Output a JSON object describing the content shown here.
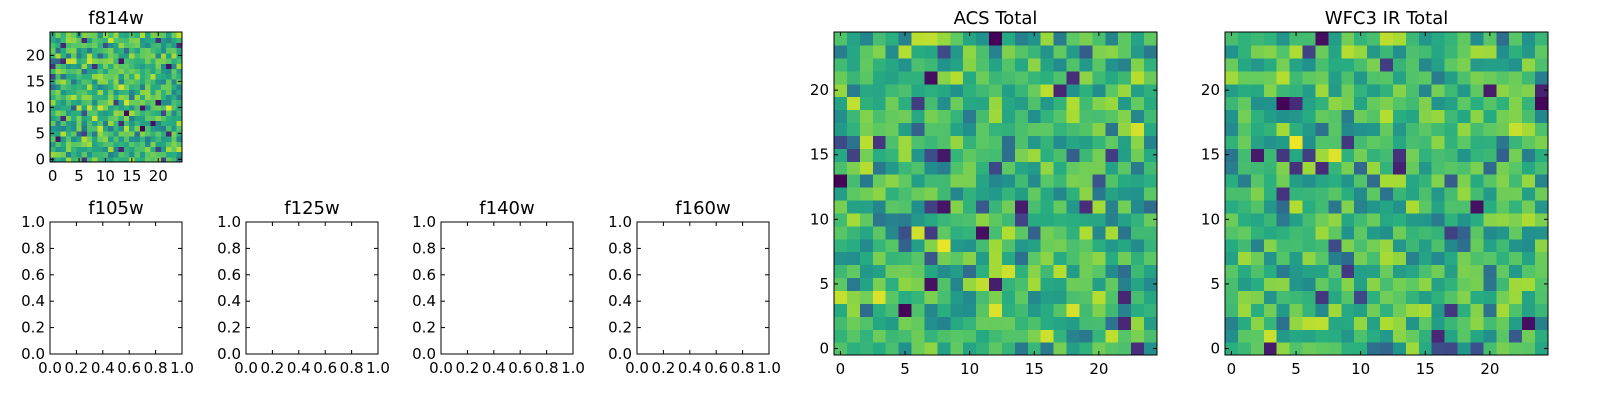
{
  "chart_data": [
    {
      "id": "f814w",
      "type": "heatmap",
      "title": "f814w",
      "colormap": "viridis",
      "grid": false,
      "x_range": [
        -0.5,
        24.5
      ],
      "y_range": [
        -0.5,
        24.5
      ],
      "x_ticks": [
        0,
        5,
        10,
        15,
        20
      ],
      "y_ticks": [
        0,
        5,
        10,
        15,
        20
      ],
      "x_tick_labels": [
        "0",
        "5",
        "10",
        "15",
        "20"
      ],
      "y_tick_labels": [
        "0",
        "5",
        "10",
        "15",
        "20"
      ],
      "grid_size": [
        25,
        25
      ],
      "seed": 814
    },
    {
      "id": "f105w",
      "type": "heatmap",
      "title": "f105w",
      "empty": true,
      "x_range": [
        0,
        1
      ],
      "y_range": [
        0,
        1
      ],
      "x_ticks": [
        0,
        0.2,
        0.4,
        0.6,
        0.8,
        1.0
      ],
      "y_ticks": [
        0,
        0.2,
        0.4,
        0.6,
        0.8,
        1.0
      ],
      "x_tick_labels": [
        "0.0",
        "0.2",
        "0.4",
        "0.6",
        "0.8",
        "1.0"
      ],
      "y_tick_labels": [
        "0.0",
        "0.2",
        "0.4",
        "0.6",
        "0.8",
        "1.0"
      ]
    },
    {
      "id": "f125w",
      "type": "heatmap",
      "title": "f125w",
      "empty": true,
      "x_range": [
        0,
        1
      ],
      "y_range": [
        0,
        1
      ],
      "x_ticks": [
        0,
        0.2,
        0.4,
        0.6,
        0.8,
        1.0
      ],
      "y_ticks": [
        0,
        0.2,
        0.4,
        0.6,
        0.8,
        1.0
      ],
      "x_tick_labels": [
        "0.0",
        "0.2",
        "0.4",
        "0.6",
        "0.8",
        "1.0"
      ],
      "y_tick_labels": [
        "0.0",
        "0.2",
        "0.4",
        "0.6",
        "0.8",
        "1.0"
      ]
    },
    {
      "id": "f140w",
      "type": "heatmap",
      "title": "f140w",
      "empty": true,
      "x_range": [
        0,
        1
      ],
      "y_range": [
        0,
        1
      ],
      "x_ticks": [
        0,
        0.2,
        0.4,
        0.6,
        0.8,
        1.0
      ],
      "y_ticks": [
        0,
        0.2,
        0.4,
        0.6,
        0.8,
        1.0
      ],
      "x_tick_labels": [
        "0.0",
        "0.2",
        "0.4",
        "0.6",
        "0.8",
        "1.0"
      ],
      "y_tick_labels": [
        "0.0",
        "0.2",
        "0.4",
        "0.6",
        "0.8",
        "1.0"
      ]
    },
    {
      "id": "f160w",
      "type": "heatmap",
      "title": "f160w",
      "empty": true,
      "x_range": [
        0,
        1
      ],
      "y_range": [
        0,
        1
      ],
      "x_ticks": [
        0,
        0.2,
        0.4,
        0.6,
        0.8,
        1.0
      ],
      "y_ticks": [
        0,
        0.2,
        0.4,
        0.6,
        0.8,
        1.0
      ],
      "x_tick_labels": [
        "0.0",
        "0.2",
        "0.4",
        "0.6",
        "0.8",
        "1.0"
      ],
      "y_tick_labels": [
        "0.0",
        "0.2",
        "0.4",
        "0.6",
        "0.8",
        "1.0"
      ]
    },
    {
      "id": "acs-total",
      "type": "heatmap",
      "title": "ACS Total",
      "colormap": "viridis",
      "grid": false,
      "x_range": [
        -0.5,
        24.5
      ],
      "y_range": [
        -0.5,
        24.5
      ],
      "x_ticks": [
        0,
        5,
        10,
        15,
        20
      ],
      "y_ticks": [
        0,
        5,
        10,
        15,
        20
      ],
      "x_tick_labels": [
        "0",
        "5",
        "10",
        "15",
        "20"
      ],
      "y_tick_labels": [
        "0",
        "5",
        "10",
        "15",
        "20"
      ],
      "grid_size": [
        25,
        25
      ],
      "seed": 1234
    },
    {
      "id": "wfc3-ir-total",
      "type": "heatmap",
      "title": "WFC3 IR Total",
      "colormap": "viridis",
      "grid": false,
      "x_range": [
        -0.5,
        24.5
      ],
      "y_range": [
        -0.5,
        24.5
      ],
      "x_ticks": [
        0,
        5,
        10,
        15,
        20
      ],
      "y_ticks": [
        0,
        5,
        10,
        15,
        20
      ],
      "x_tick_labels": [
        "0",
        "5",
        "10",
        "15",
        "20"
      ],
      "y_tick_labels": [
        "0",
        "5",
        "10",
        "15",
        "20"
      ],
      "grid_size": [
        25,
        25
      ],
      "seed": 5678
    }
  ]
}
